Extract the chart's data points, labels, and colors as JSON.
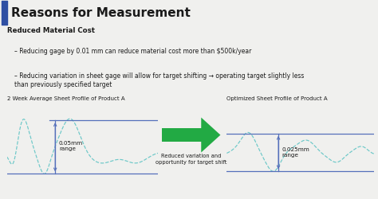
{
  "title": "Reasons for Measurement",
  "bg_color": "#f0f0ee",
  "title_color": "#1a1a1a",
  "accent_bar_color": "#2e4fa3",
  "bullet_bold": "Reduced Material Cost",
  "bullet1": "Reducing gage by 0.01 mm can reduce material cost more than $500k/year",
  "bullet2": "Reducing variation in sheet gage will allow for target shifting → operating target slightly less\nthan previously specified target",
  "chart1_title": "2 Week Average Sheet Profile of Product A",
  "chart2_title": "Optimized Sheet Profile of Product A",
  "chart1_label": "0.05mm\nrange",
  "chart2_label": "0.025mm\nrange",
  "arrow_label": "Reduced variation and\nopportunity for target shift",
  "teal_color": "#6cc8c8",
  "blue_line_color": "#5570bb",
  "arrow_color": "#22aa44",
  "dash_color": "#88cccc"
}
